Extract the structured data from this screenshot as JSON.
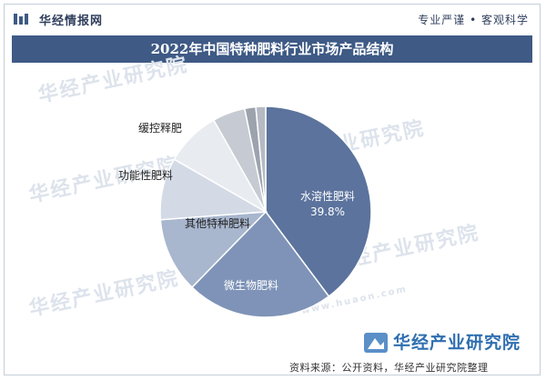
{
  "header": {
    "brand_name": "华经情报网",
    "tagline": "专业严谨 • 客观科学"
  },
  "chart_data": {
    "type": "pie",
    "title": "2022年中国特种肥料行业市场产品结构",
    "slices": [
      {
        "label": "水溶性肥料",
        "value": 39.8,
        "value_label": "39.8%",
        "color": "#5b739d",
        "text_color": "#ffffff"
      },
      {
        "label": "微生物肥料",
        "value": 22.5,
        "color": "#7e93b7",
        "text_color": "#ffffff"
      },
      {
        "label": "其他特种肥料",
        "value": 11.5,
        "color": "#a8b6ce",
        "text_color": "#222222"
      },
      {
        "label": "功能性肥料",
        "value": 9.5,
        "color": "#d3dae6",
        "text_color": "#222222"
      },
      {
        "label": "缓控释肥",
        "value": 8.5,
        "color": "#e8ebf0",
        "text_color": "#222222"
      },
      {
        "label": "",
        "value": 5.0,
        "color": "#c6cbd3"
      },
      {
        "label": "",
        "value": 1.7,
        "color": "#9ca3ad"
      },
      {
        "label": "",
        "value": 1.5,
        "color": "#b5bac3"
      }
    ]
  },
  "watermark": {
    "text": "华经产业研究院",
    "url": "www.huaon.com"
  },
  "footer": {
    "source": "资料来源：公开资料，华经产业研究院整理",
    "brand": "华经产业研究院"
  }
}
